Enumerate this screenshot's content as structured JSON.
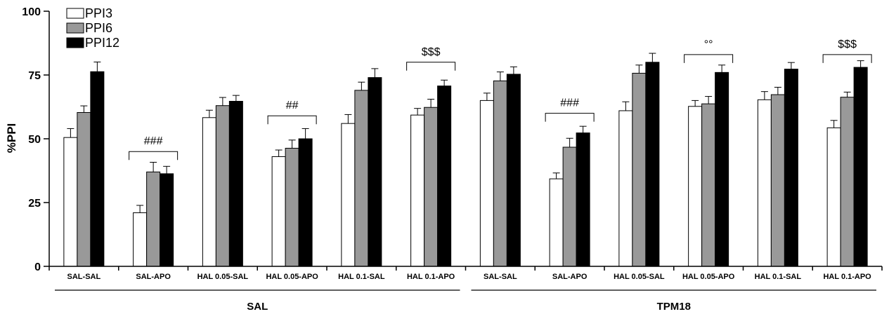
{
  "chart_data": {
    "type": "bar",
    "title": "",
    "xlabel": "",
    "ylabel": "%PPI",
    "ylim": [
      0,
      100
    ],
    "yticks": [
      0,
      25,
      50,
      75,
      100
    ],
    "grid": false,
    "legend_position": "top-left",
    "categories": [
      "SAL-SAL",
      "SAL-APO",
      "HAL 0.05-SAL",
      "HAL 0.05-APO",
      "HAL 0.1-SAL",
      "HAL 0.1-APO",
      "SAL-SAL",
      "SAL-APO",
      "HAL 0.05-SAL",
      "HAL 0.05-APO",
      "HAL 0.1-SAL",
      "HAL 0.1-APO"
    ],
    "groups": [
      {
        "label": "SAL",
        "from": 0,
        "to": 5
      },
      {
        "label": "TPM18",
        "from": 6,
        "to": 11
      }
    ],
    "series": [
      {
        "name": "PPI3",
        "color": "#ffffff",
        "values": [
          50.5,
          21,
          58.3,
          43,
          56,
          59.3,
          65,
          34.3,
          61,
          62.7,
          65.3,
          54.3
        ],
        "errors": [
          3.5,
          2.9,
          2.9,
          2.6,
          3.5,
          2.6,
          2.9,
          2.3,
          3.5,
          2.3,
          3.2,
          2.9
        ]
      },
      {
        "name": "PPI6",
        "color": "#999999",
        "values": [
          60.3,
          37,
          63,
          46.3,
          69,
          62.3,
          72.7,
          46.7,
          75.7,
          63.7,
          67.3,
          66.3
        ],
        "errors": [
          2.6,
          3.8,
          3.2,
          3.2,
          3.2,
          3.2,
          3.5,
          3.5,
          3.2,
          2.9,
          2.9,
          2.0
        ]
      },
      {
        "name": "PPI12",
        "color": "#000000",
        "values": [
          76.3,
          36.3,
          64.7,
          50,
          74,
          70.7,
          75.3,
          52.3,
          80,
          76,
          77.3,
          78
        ],
        "errors": [
          3.8,
          2.9,
          2.3,
          4.0,
          3.5,
          2.3,
          2.9,
          2.6,
          3.5,
          2.9,
          2.6,
          2.6
        ]
      }
    ],
    "annotations": [
      {
        "text": "###",
        "from": 1,
        "to": 1,
        "y": 45
      },
      {
        "text": "##",
        "from": 3,
        "to": 3,
        "y": 59
      },
      {
        "text": "$$$",
        "from": 5,
        "to": 5,
        "y": 80
      },
      {
        "text": "###",
        "from": 7,
        "to": 7,
        "y": 60
      },
      {
        "text": "°°",
        "from": 9,
        "to": 9,
        "y": 83
      },
      {
        "text": "$$$",
        "from": 11,
        "to": 11,
        "y": 83
      }
    ]
  }
}
